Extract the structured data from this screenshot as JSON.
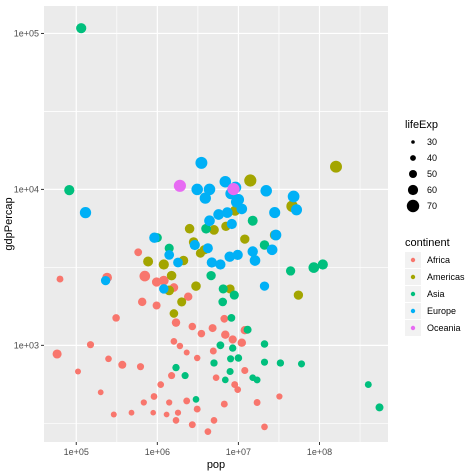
{
  "chart_data": {
    "type": "scatter",
    "title": "",
    "xlabel": "pop",
    "ylabel": "gdpPercap",
    "x_scale": "log10",
    "y_scale": "log10",
    "xlim": [
      40000,
      700000000
    ],
    "ylim": [
      240,
      150000
    ],
    "grid": true,
    "x_ticks": [
      {
        "value": 100000,
        "label": "1e+05"
      },
      {
        "value": 1000000,
        "label": "1e+06"
      },
      {
        "value": 10000000,
        "label": "1e+07"
      },
      {
        "value": 100000000,
        "label": "1e+08"
      }
    ],
    "y_ticks": [
      {
        "value": 1000,
        "label": "1e+03"
      },
      {
        "value": 10000,
        "label": "1e+04"
      },
      {
        "value": 100000,
        "label": "1e+05"
      }
    ],
    "size_legend": {
      "title": "lifeExp",
      "entries": [
        {
          "label": "30",
          "value": 30
        },
        {
          "label": "40",
          "value": 40
        },
        {
          "label": "50",
          "value": 50
        },
        {
          "label": "60",
          "value": 60
        },
        {
          "label": "70",
          "value": 70
        }
      ]
    },
    "color_legend": {
      "title": "continent",
      "position": "right",
      "entries": [
        {
          "label": "Africa",
          "color": "#F8766D"
        },
        {
          "label": "Americas",
          "color": "#A3A500"
        },
        {
          "label": "Asia",
          "color": "#00BF7D"
        },
        {
          "label": "Europe",
          "color": "#00B0F6"
        },
        {
          "label": "Oceania",
          "color": "#E76BF3"
        }
      ]
    },
    "series": [
      {
        "name": "Africa",
        "color": "#F8766D",
        "points": [
          [
            63000,
            2660,
            45
          ],
          [
            58000,
            880,
            55
          ],
          [
            240000,
            2720,
            58
          ],
          [
            700000,
            2780,
            62
          ],
          [
            1200000,
            2600,
            58
          ],
          [
            310000,
            1500,
            48
          ],
          [
            650000,
            1900,
            52
          ],
          [
            980000,
            2550,
            56
          ],
          [
            580000,
            3950,
            49
          ],
          [
            980000,
            1800,
            50
          ],
          [
            1600000,
            2350,
            53
          ],
          [
            2400000,
            2050,
            52
          ],
          [
            1700000,
            1400,
            52
          ],
          [
            2700000,
            1320,
            48
          ],
          [
            3500000,
            1190,
            48
          ],
          [
            4800000,
            1290,
            50
          ],
          [
            6700000,
            1480,
            49
          ],
          [
            1600000,
            1060,
            44
          ],
          [
            1900000,
            990,
            43
          ],
          [
            2300000,
            900,
            41
          ],
          [
            3100000,
            830,
            43
          ],
          [
            4900000,
            920,
            45
          ],
          [
            8500000,
            1090,
            51
          ],
          [
            12000000,
            1250,
            52
          ],
          [
            370000,
            750,
            50
          ],
          [
            620000,
            730,
            46
          ],
          [
            1100000,
            560,
            44
          ],
          [
            910000,
            470,
            44
          ],
          [
            1400000,
            430,
            42
          ],
          [
            2300000,
            440,
            45
          ],
          [
            3100000,
            390,
            45
          ],
          [
            5000000,
            330,
            44
          ],
          [
            6700000,
            420,
            45
          ],
          [
            9800000,
            520,
            44
          ],
          [
            12000000,
            690,
            46
          ],
          [
            17000000,
            430,
            45
          ],
          [
            21000000,
            300,
            44
          ],
          [
            2700000,
            310,
            45
          ],
          [
            4200000,
            280,
            44
          ],
          [
            1500000,
            640,
            46
          ],
          [
            1800000,
            370,
            42
          ],
          [
            5300000,
            620,
            44
          ],
          [
            890000,
            370,
            39
          ],
          [
            150000,
            1010,
            46
          ],
          [
            250000,
            820,
            44
          ],
          [
            105000,
            680,
            41
          ],
          [
            200000,
            500,
            40
          ],
          [
            290000,
            360,
            41
          ],
          [
            480000,
            370,
            40
          ],
          [
            680000,
            430,
            42
          ],
          [
            6900000,
            1170,
            52
          ],
          [
            11000000,
            1040,
            52
          ],
          [
            1300000,
            360,
            40
          ],
          [
            9000000,
            560,
            45
          ],
          [
            1700000,
            330,
            44
          ],
          [
            32000000,
            470,
            42
          ]
        ]
      },
      {
        "name": "Americas",
        "color": "#A3A500",
        "points": [
          [
            160000000,
            13990,
            68
          ],
          [
            14000000,
            11400,
            69
          ],
          [
            46000000,
            7800,
            66
          ],
          [
            8700000,
            10100,
            62
          ],
          [
            9100000,
            7300,
            60
          ],
          [
            2500000,
            5600,
            57
          ],
          [
            2800000,
            4600,
            57
          ],
          [
            3400000,
            3900,
            55
          ],
          [
            1200000,
            3300,
            60
          ],
          [
            2100000,
            3500,
            57
          ],
          [
            770000,
            3450,
            59
          ],
          [
            1500000,
            2800,
            57
          ],
          [
            3000000,
            2400,
            57
          ],
          [
            1400000,
            2250,
            58
          ],
          [
            5000000,
            5500,
            58
          ],
          [
            7000000,
            5800,
            56
          ],
          [
            3800000,
            4100,
            56
          ],
          [
            2000000,
            1900,
            55
          ],
          [
            1600000,
            1600,
            53
          ],
          [
            28000000,
            5100,
            58
          ],
          [
            55000000,
            2100,
            56
          ],
          [
            12000000,
            4800,
            56
          ],
          [
            7900000,
            2300,
            55
          ]
        ]
      },
      {
        "name": "Asia",
        "color": "#00BF7D",
        "points": [
          [
            115000,
            108000,
            60
          ],
          [
            82000,
            9900,
            60
          ],
          [
            1000000,
            4900,
            55
          ],
          [
            1400000,
            4200,
            55
          ],
          [
            4600000,
            2800,
            56
          ],
          [
            6500000,
            2300,
            55
          ],
          [
            8900000,
            2100,
            55
          ],
          [
            4000000,
            5600,
            58
          ],
          [
            15000000,
            6300,
            59
          ],
          [
            21000000,
            4400,
            57
          ],
          [
            6400000,
            1900,
            53
          ],
          [
            6000000,
            1000,
            49
          ],
          [
            8500000,
            960,
            47
          ],
          [
            5000000,
            770,
            47
          ],
          [
            21000000,
            780,
            46
          ],
          [
            21000000,
            1020,
            48
          ],
          [
            33000000,
            770,
            47
          ],
          [
            60000000,
            760,
            46
          ],
          [
            400000000,
            560,
            45
          ],
          [
            550000000,
            400,
            50
          ],
          [
            85000000,
            3150,
            62
          ],
          [
            110000000,
            3300,
            60
          ],
          [
            44000000,
            3000,
            56
          ],
          [
            1700000,
            720,
            47
          ],
          [
            2200000,
            640,
            46
          ],
          [
            8000000,
            820,
            46
          ],
          [
            15000000,
            620,
            44
          ],
          [
            3000000,
            450,
            44
          ],
          [
            7900000,
            680,
            46
          ],
          [
            10000000,
            830,
            48
          ],
          [
            17000000,
            600,
            45
          ],
          [
            13000000,
            1260,
            50
          ],
          [
            8200000,
            1500,
            49
          ],
          [
            6900000,
            600,
            44
          ]
        ]
      },
      {
        "name": "Europe",
        "color": "#00B0F6",
        "points": [
          [
            3500000,
            14800,
            68
          ],
          [
            6900000,
            11200,
            66
          ],
          [
            3100000,
            10000,
            66
          ],
          [
            3900000,
            8800,
            65
          ],
          [
            4400000,
            10000,
            66
          ],
          [
            8100000,
            9400,
            65
          ],
          [
            9200000,
            10300,
            66
          ],
          [
            10000000,
            8600,
            65
          ],
          [
            9500000,
            8300,
            65
          ],
          [
            11000000,
            7500,
            62
          ],
          [
            5700000,
            6900,
            62
          ],
          [
            4400000,
            6300,
            62
          ],
          [
            7300000,
            7100,
            62
          ],
          [
            8300000,
            6000,
            60
          ],
          [
            22000000,
            9800,
            66
          ],
          [
            28000000,
            7100,
            64
          ],
          [
            48000000,
            9000,
            67
          ],
          [
            52000000,
            7400,
            64
          ],
          [
            26000000,
            4100,
            62
          ],
          [
            29000000,
            5100,
            63
          ],
          [
            15000000,
            4000,
            61
          ],
          [
            9800000,
            3800,
            60
          ],
          [
            7800000,
            3700,
            61
          ],
          [
            6000000,
            3300,
            60
          ],
          [
            16000000,
            3500,
            62
          ],
          [
            920000,
            4900,
            61
          ],
          [
            2900000,
            4400,
            60
          ],
          [
            4200000,
            4200,
            59
          ],
          [
            1400000,
            3800,
            58
          ],
          [
            1800000,
            3400,
            58
          ],
          [
            130000,
            7100,
            65
          ],
          [
            230000,
            2600,
            56
          ],
          [
            1200000,
            2300,
            57
          ],
          [
            4700000,
            3400,
            60
          ],
          [
            21000000,
            2400,
            56
          ]
        ]
      },
      {
        "name": "Oceania",
        "color": "#E76BF3",
        "points": [
          [
            1900000,
            10550,
            69
          ],
          [
            8700000,
            10040,
            69
          ]
        ]
      }
    ]
  }
}
